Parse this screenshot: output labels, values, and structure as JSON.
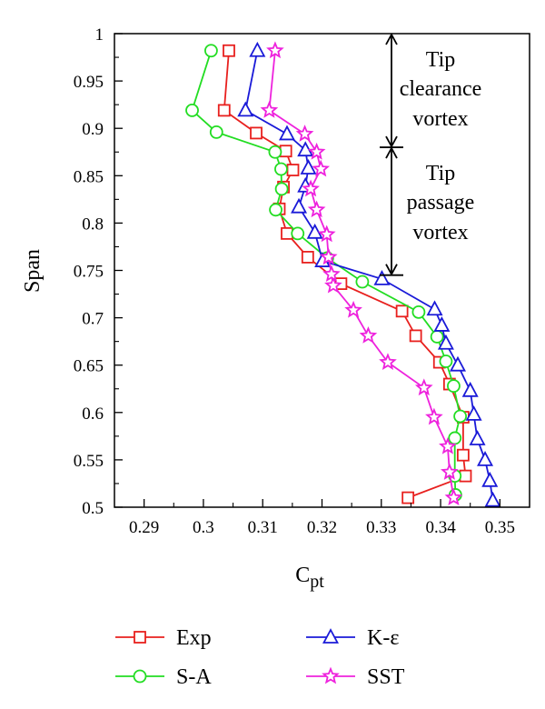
{
  "chart_data": {
    "type": "line",
    "xlabel": "C",
    "xlabel_sub": "pt",
    "ylabel": "Span",
    "xlim": [
      0.285,
      0.355
    ],
    "ylim": [
      0.5,
      1.0
    ],
    "xticks": [
      0.29,
      0.3,
      0.31,
      0.32,
      0.33,
      0.34,
      0.35
    ],
    "xtick_labels": [
      "0.29",
      "0.3",
      "0.31",
      "0.32",
      "0.33",
      "0.34",
      "0.35"
    ],
    "yticks": [
      0.5,
      0.55,
      0.6,
      0.65,
      0.7,
      0.75,
      0.8,
      0.85,
      0.9,
      0.95,
      1.0
    ],
    "ytick_labels": [
      "0.5",
      "0.55",
      "0.6",
      "0.65",
      "0.7",
      "0.75",
      "0.8",
      "0.85",
      "0.9",
      "0.95",
      "1"
    ],
    "grid": false,
    "legend_position": "below",
    "series": [
      {
        "name": "Exp",
        "color": "#e8201e",
        "marker": "square",
        "points": [
          [
            0.3345,
            0.51
          ],
          [
            0.3442,
            0.533
          ],
          [
            0.3438,
            0.555
          ],
          [
            0.3438,
            0.595
          ],
          [
            0.3415,
            0.63
          ],
          [
            0.3398,
            0.653
          ],
          [
            0.3358,
            0.681
          ],
          [
            0.3335,
            0.707
          ],
          [
            0.3232,
            0.736
          ],
          [
            0.3176,
            0.764
          ],
          [
            0.3141,
            0.789
          ],
          [
            0.3128,
            0.815
          ],
          [
            0.3135,
            0.838
          ],
          [
            0.3151,
            0.856
          ],
          [
            0.3139,
            0.876
          ],
          [
            0.3089,
            0.895
          ],
          [
            0.3035,
            0.919
          ],
          [
            0.3043,
            0.982
          ]
        ]
      },
      {
        "name": "S-A",
        "color": "#22dd22",
        "marker": "circle",
        "points": [
          [
            0.3425,
            0.513
          ],
          [
            0.3424,
            0.533
          ],
          [
            0.3424,
            0.573
          ],
          [
            0.3433,
            0.596
          ],
          [
            0.3422,
            0.628
          ],
          [
            0.3409,
            0.654
          ],
          [
            0.3394,
            0.68
          ],
          [
            0.3363,
            0.706
          ],
          [
            0.3268,
            0.738
          ],
          [
            0.3209,
            0.763
          ],
          [
            0.3159,
            0.789
          ],
          [
            0.3122,
            0.814
          ],
          [
            0.3132,
            0.836
          ],
          [
            0.3131,
            0.857
          ],
          [
            0.3121,
            0.875
          ],
          [
            0.3022,
            0.896
          ],
          [
            0.2981,
            0.919
          ],
          [
            0.3013,
            0.982
          ]
        ]
      },
      {
        "name": "K-ε",
        "color": "#1a1ad8",
        "marker": "triangle",
        "points": [
          [
            0.3488,
            0.507
          ],
          [
            0.3483,
            0.528
          ],
          [
            0.3475,
            0.55
          ],
          [
            0.3462,
            0.572
          ],
          [
            0.3456,
            0.598
          ],
          [
            0.345,
            0.623
          ],
          [
            0.3429,
            0.65
          ],
          [
            0.3409,
            0.673
          ],
          [
            0.3402,
            0.692
          ],
          [
            0.339,
            0.709
          ],
          [
            0.3301,
            0.741
          ],
          [
            0.3201,
            0.76
          ],
          [
            0.3188,
            0.79
          ],
          [
            0.3161,
            0.817
          ],
          [
            0.3172,
            0.839
          ],
          [
            0.3177,
            0.858
          ],
          [
            0.3172,
            0.877
          ],
          [
            0.3141,
            0.894
          ],
          [
            0.3071,
            0.919
          ],
          [
            0.3091,
            0.982
          ]
        ]
      },
      {
        "name": "SST",
        "color": "#ee22dd",
        "marker": "star",
        "points": [
          [
            0.3422,
            0.51
          ],
          [
            0.3415,
            0.537
          ],
          [
            0.3412,
            0.564
          ],
          [
            0.3389,
            0.595
          ],
          [
            0.3372,
            0.626
          ],
          [
            0.3311,
            0.653
          ],
          [
            0.3278,
            0.681
          ],
          [
            0.3253,
            0.708
          ],
          [
            0.3219,
            0.734
          ],
          [
            0.3216,
            0.746
          ],
          [
            0.3211,
            0.764
          ],
          [
            0.3208,
            0.788
          ],
          [
            0.3191,
            0.814
          ],
          [
            0.3181,
            0.836
          ],
          [
            0.3198,
            0.857
          ],
          [
            0.3191,
            0.875
          ],
          [
            0.3171,
            0.894
          ],
          [
            0.3111,
            0.919
          ],
          [
            0.3121,
            0.982
          ]
        ]
      }
    ],
    "annotations": {
      "upper_region": {
        "lines": [
          "Tip",
          "clearance",
          "vortex"
        ],
        "span_from": 0.88,
        "span_to": 1.0
      },
      "lower_region": {
        "lines": [
          "Tip",
          "passage",
          "vortex"
        ],
        "span_from": 0.745,
        "span_to": 0.88
      }
    }
  }
}
